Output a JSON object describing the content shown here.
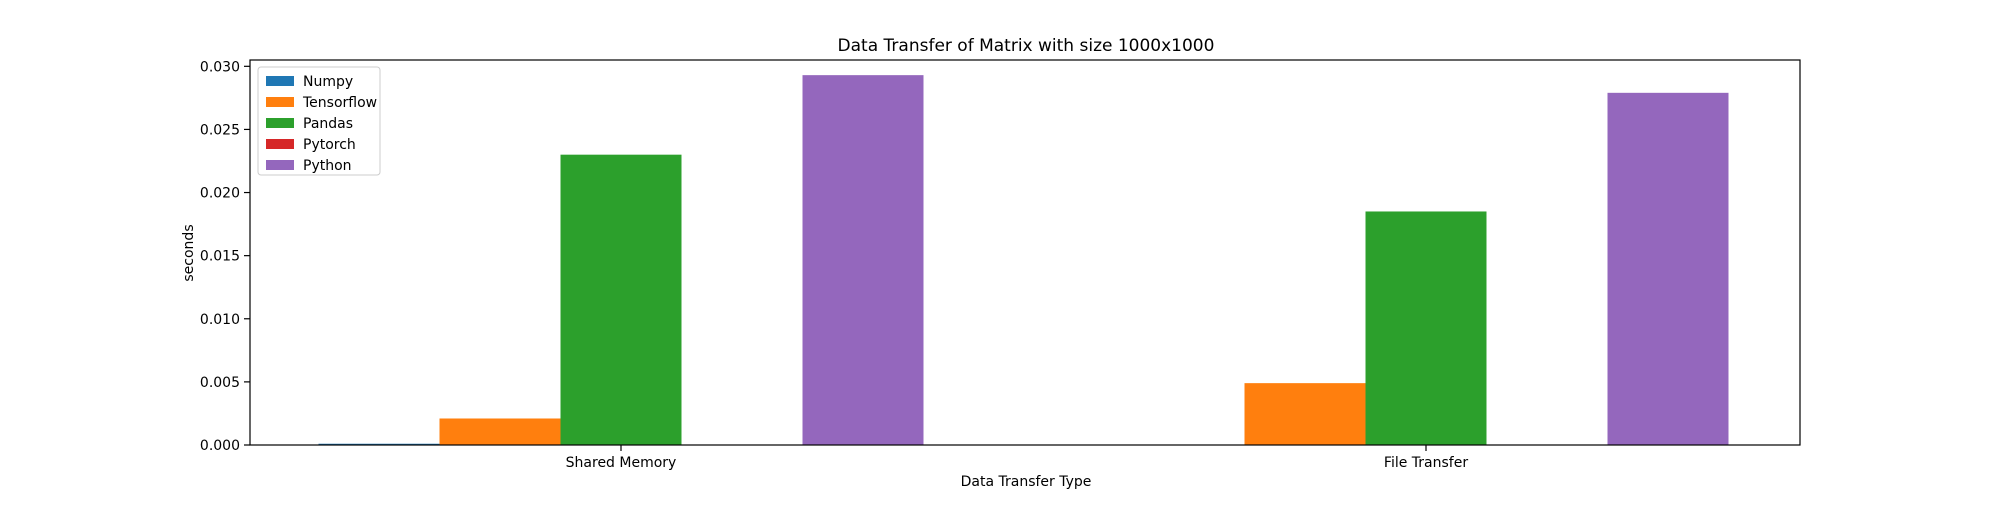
{
  "chart_data": {
    "type": "bar",
    "title": "Data Transfer of Matrix with size 1000x1000",
    "xlabel": "Data Transfer Type",
    "ylabel": "seconds",
    "categories": [
      "Shared Memory",
      "File Transfer"
    ],
    "ylim": [
      0,
      0.0305
    ],
    "yticks": [
      "0.000",
      "0.005",
      "0.010",
      "0.015",
      "0.020",
      "0.025",
      "0.030"
    ],
    "legend_position": "top-left",
    "grid": false,
    "series": [
      {
        "name": "Numpy",
        "color": "#1f77b4",
        "values": [
          0.0001,
          0.0
        ]
      },
      {
        "name": "Tensorflow",
        "color": "#ff7f0e",
        "values": [
          0.0021,
          0.0049
        ]
      },
      {
        "name": "Pandas",
        "color": "#2ca02c",
        "values": [
          0.023,
          0.0185
        ]
      },
      {
        "name": "Pytorch",
        "color": "#d62728",
        "values": [
          0.0,
          0.0
        ]
      },
      {
        "name": "Python",
        "color": "#9467bd",
        "values": [
          0.0293,
          0.0279
        ]
      }
    ]
  }
}
